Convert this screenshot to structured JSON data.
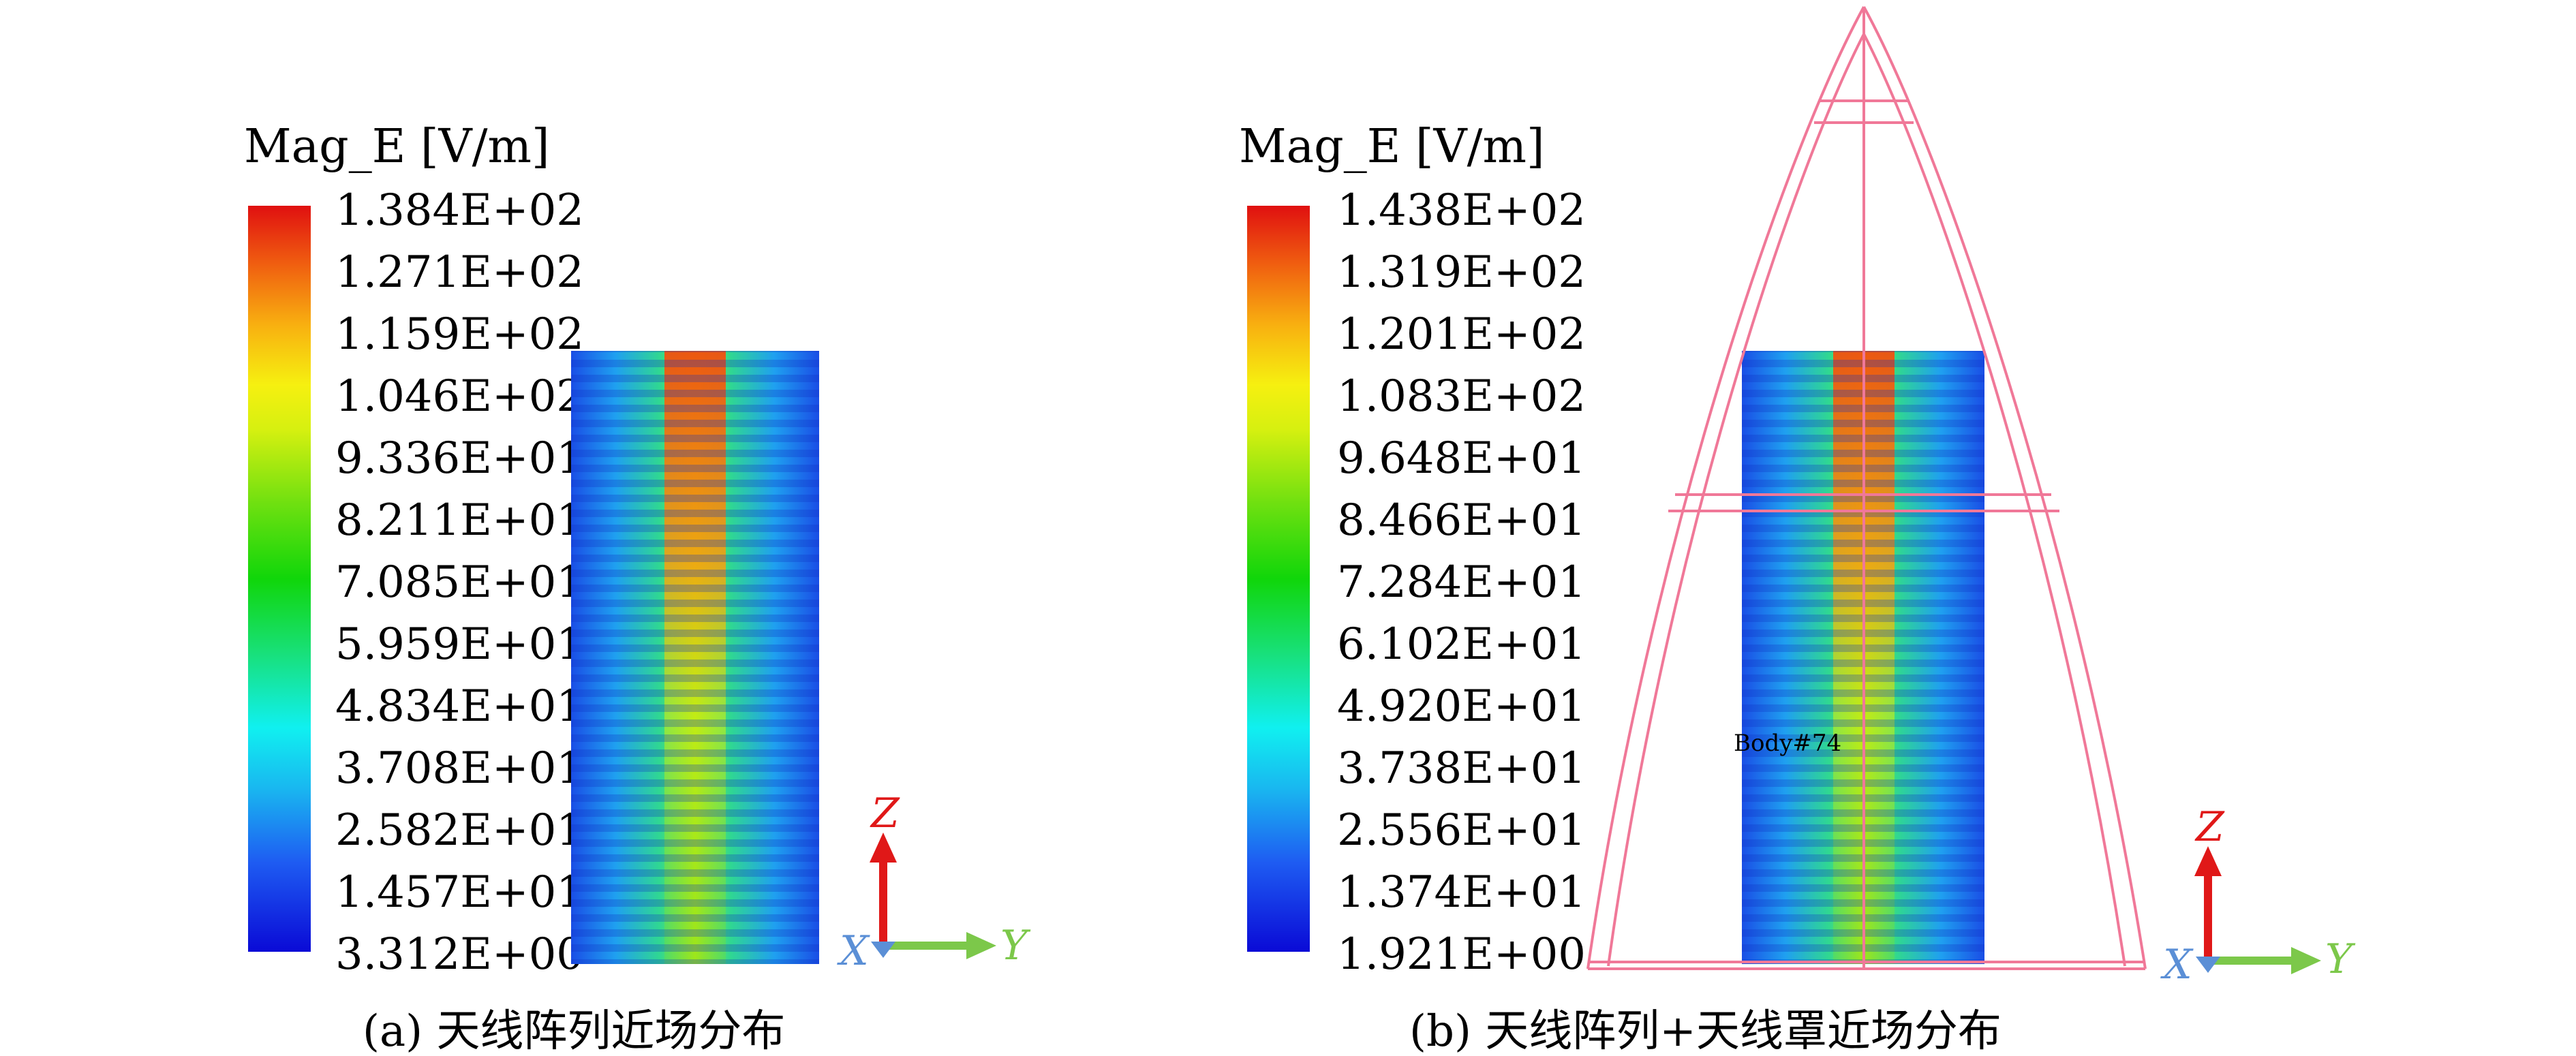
{
  "colors": {
    "scale": [
      "#0a0ad6",
      "#1e5cf2",
      "#19b8f0",
      "#10f0f0",
      "#18e07a",
      "#10d60a",
      "#6ee010",
      "#d6f010",
      "#f6f010",
      "#f8b010",
      "#f06010",
      "#e01010"
    ],
    "radome": "#f07898",
    "axis_z": "#e01818",
    "axis_y": "#7cc84a",
    "axis_x": "#5b8fd6"
  },
  "panel_a": {
    "legend_title": "Mag_E [V/m]",
    "ticks": [
      "1.384E+02",
      "1.271E+02",
      "1.159E+02",
      "1.046E+02",
      "9.336E+01",
      "8.211E+01",
      "7.085E+01",
      "5.959E+01",
      "4.834E+01",
      "3.708E+01",
      "2.582E+01",
      "1.457E+01",
      "3.312E+00"
    ],
    "axes": {
      "z": "Z",
      "x": "X",
      "y": "Y"
    },
    "caption": "(a) 天线阵列近场分布"
  },
  "panel_b": {
    "legend_title": "Mag_E [V/m]",
    "ticks": [
      "1.438E+02",
      "1.319E+02",
      "1.201E+02",
      "1.083E+02",
      "9.648E+01",
      "8.466E+01",
      "7.284E+01",
      "6.102E+01",
      "4.920E+01",
      "3.738E+01",
      "2.556E+01",
      "1.374E+01",
      "1.921E+00"
    ],
    "body_label": "Body#74",
    "axes": {
      "z": "Z",
      "x": "X",
      "y": "Y"
    },
    "caption": "(b) 天线阵列+天线罩近场分布"
  }
}
